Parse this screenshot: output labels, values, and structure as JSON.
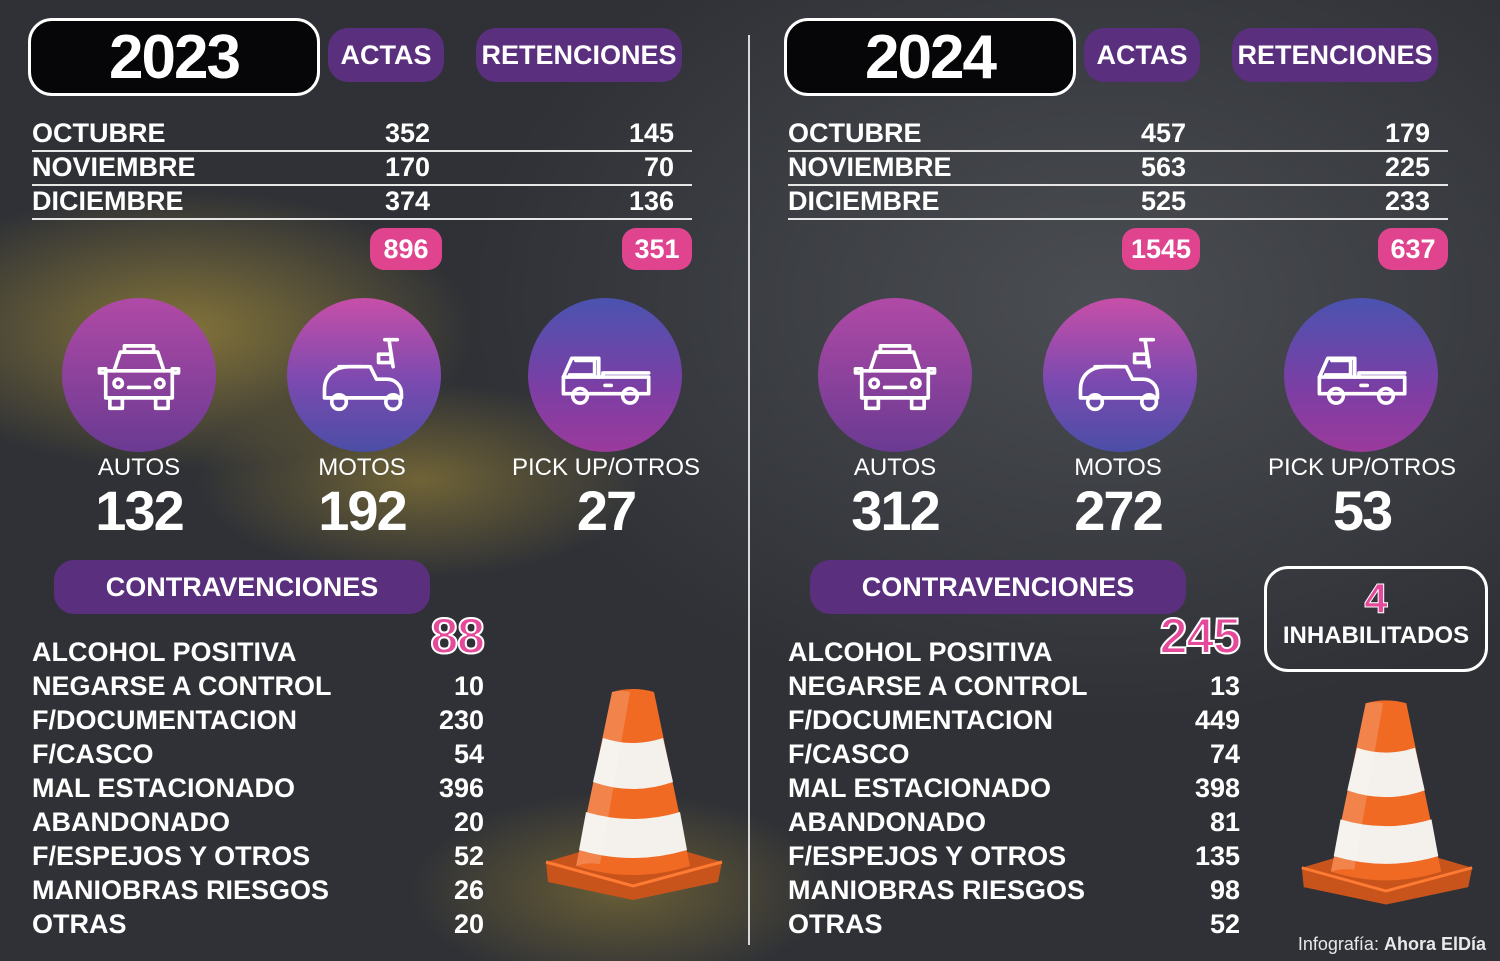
{
  "left": {
    "year": "2023",
    "actas_label": "ACTAS",
    "ret_label": "RETENCIONES",
    "months": [
      {
        "name": "OCTUBRE",
        "actas": "352",
        "ret": "145"
      },
      {
        "name": "NOVIEMBRE",
        "actas": "170",
        "ret": "70"
      },
      {
        "name": "DICIEMBRE",
        "actas": "374",
        "ret": "136"
      }
    ],
    "total_actas": "896",
    "total_ret": "351",
    "vehicles": [
      {
        "label": "AUTOS",
        "value": "132",
        "icon": "car-icon"
      },
      {
        "label": "MOTOS",
        "value": "192",
        "icon": "scooter-icon"
      },
      {
        "label": "PICK UP/OTROS",
        "value": "27",
        "icon": "pickup-icon"
      }
    ],
    "contra_title": "CONTRAVENCIONES",
    "contra": [
      {
        "name": "ALCOHOL POSITIVA",
        "value": "88"
      },
      {
        "name": "NEGARSE A CONTROL",
        "value": "10"
      },
      {
        "name": "F/DOCUMENTACION",
        "value": "230"
      },
      {
        "name": "F/CASCO",
        "value": "54"
      },
      {
        "name": "MAL ESTACIONADO",
        "value": "396"
      },
      {
        "name": "ABANDONADO",
        "value": "20"
      },
      {
        "name": "F/ESPEJOS Y OTROS",
        "value": "52"
      },
      {
        "name": "MANIOBRAS RIESGOS",
        "value": "26"
      },
      {
        "name": "OTRAS",
        "value": "20"
      }
    ]
  },
  "right": {
    "year": "2024",
    "actas_label": "ACTAS",
    "ret_label": "RETENCIONES",
    "months": [
      {
        "name": "OCTUBRE",
        "actas": "457",
        "ret": "179"
      },
      {
        "name": "NOVIEMBRE",
        "actas": "563",
        "ret": "225"
      },
      {
        "name": "DICIEMBRE",
        "actas": "525",
        "ret": "233"
      }
    ],
    "total_actas": "1545",
    "total_ret": "637",
    "vehicles": [
      {
        "label": "AUTOS",
        "value": "312",
        "icon": "car-icon"
      },
      {
        "label": "MOTOS",
        "value": "272",
        "icon": "scooter-icon"
      },
      {
        "label": "PICK UP/OTROS",
        "value": "53",
        "icon": "pickup-icon"
      }
    ],
    "contra_title": "CONTRAVENCIONES",
    "contra": [
      {
        "name": "ALCOHOL POSITIVA",
        "value": "245"
      },
      {
        "name": "NEGARSE A CONTROL",
        "value": "13"
      },
      {
        "name": "F/DOCUMENTACION",
        "value": "449"
      },
      {
        "name": "F/CASCO",
        "value": "74"
      },
      {
        "name": "MAL ESTACIONADO",
        "value": "398"
      },
      {
        "name": "ABANDONADO",
        "value": "81"
      },
      {
        "name": "F/ESPEJOS Y OTROS",
        "value": "135"
      },
      {
        "name": "MANIOBRAS RIESGOS",
        "value": "98"
      },
      {
        "name": "OTRAS",
        "value": "52"
      }
    ],
    "inhabilitados_count": "4",
    "inhabilitados_label": "INHABILITADOS"
  },
  "credit_prefix": "Infografía:",
  "credit_source": "Ahora ElDía",
  "colors": {
    "accent_purple": "#5a2f7d",
    "accent_pink": "#e0448f"
  }
}
